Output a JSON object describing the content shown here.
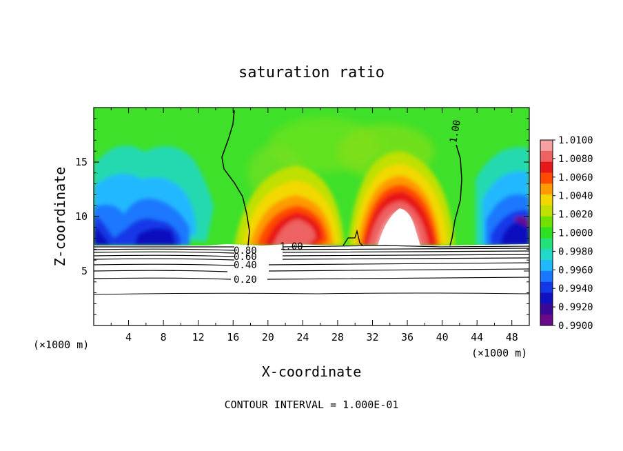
{
  "chart_data": {
    "type": "heatmap",
    "title": "saturation ratio",
    "xlabel": "X-coordinate",
    "ylabel": "Z-coordinate",
    "x_unit_left": "(×1000 m)",
    "x_unit_right": "(×1000 m)",
    "xlim": [
      0,
      50
    ],
    "ylim": [
      0,
      20
    ],
    "x_ticks": [
      4,
      8,
      12,
      16,
      20,
      24,
      28,
      32,
      36,
      40,
      44,
      48
    ],
    "y_ticks": [
      5,
      10,
      15
    ],
    "footer": "CONTOUR INTERVAL = 1.000E-01",
    "colorbar": {
      "labels": [
        "1.0100",
        "1.0080",
        "1.0060",
        "1.0040",
        "1.0020",
        "1.0000",
        "0.9980",
        "0.9960",
        "0.9940",
        "0.9920",
        "0.9900"
      ],
      "colors": [
        "#f4a0a0",
        "#ee6262",
        "#e81818",
        "#ff4a00",
        "#ff9a00",
        "#f2d800",
        "#bfe000",
        "#70e000",
        "#2ee020",
        "#22e07a",
        "#22d8c8",
        "#20b8ff",
        "#1a78ff",
        "#1438e8",
        "#1010c0",
        "#3a0898",
        "#6a0a8a"
      ]
    },
    "contour_labels": [
      "1.00",
      "0.80",
      "0.60",
      "0.40",
      "0.20",
      "1.00"
    ],
    "colors": {
      "background": "#ffffff",
      "field_base": "#3ee02a",
      "cloud_free": "#ffffff",
      "contour": "#000000"
    }
  }
}
